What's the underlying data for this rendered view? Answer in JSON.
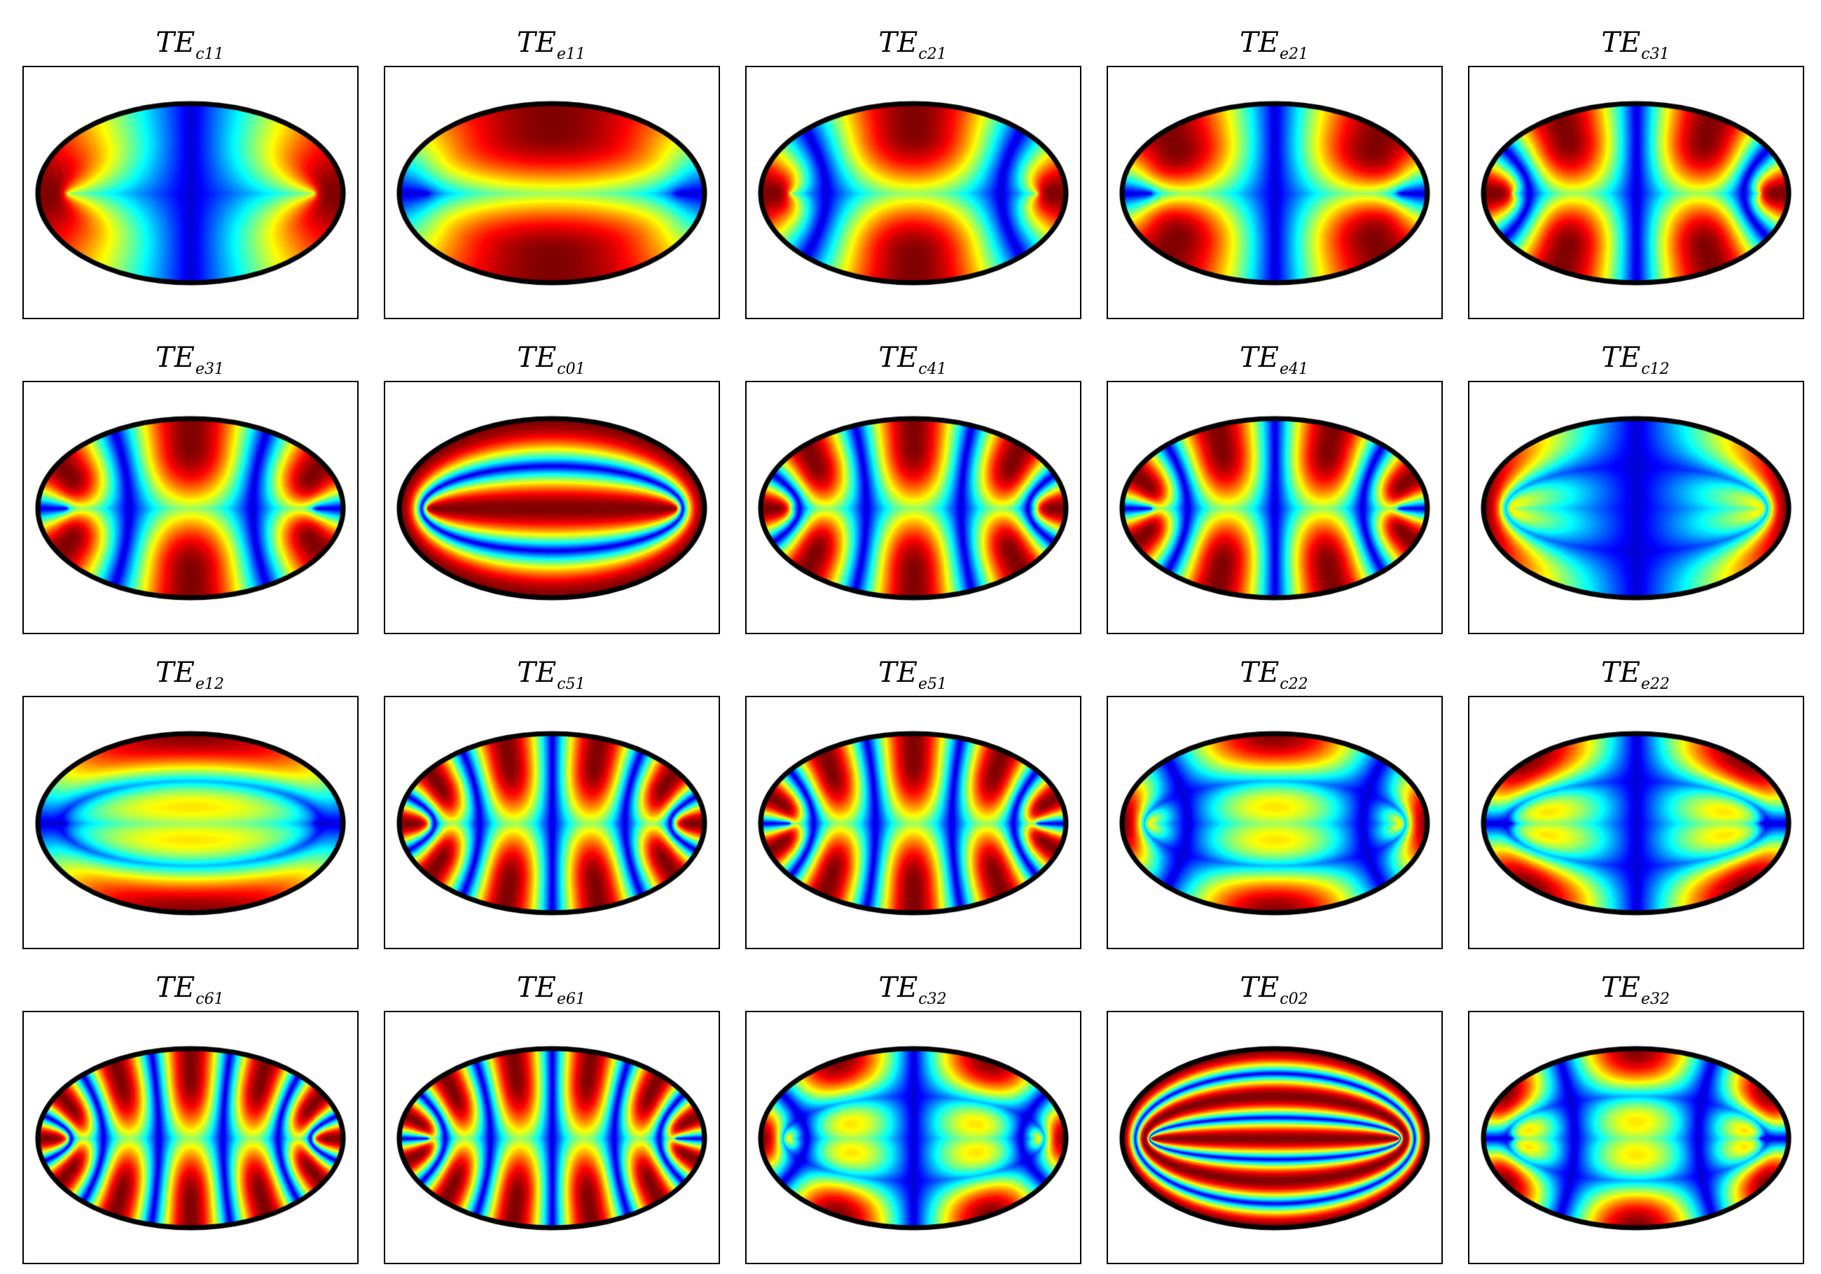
{
  "figure": {
    "title": "",
    "layout": {
      "rows": 4,
      "cols": 5
    },
    "colormap": "jet",
    "panels": [
      {
        "label_main": "TE",
        "label_sub": "c11",
        "mode": {
          "kind": "c",
          "m": 1,
          "n": 1
        }
      },
      {
        "label_main": "TE",
        "label_sub": "e11",
        "mode": {
          "kind": "e",
          "m": 1,
          "n": 1
        }
      },
      {
        "label_main": "TE",
        "label_sub": "c21",
        "mode": {
          "kind": "c",
          "m": 2,
          "n": 1
        }
      },
      {
        "label_main": "TE",
        "label_sub": "e21",
        "mode": {
          "kind": "e",
          "m": 2,
          "n": 1
        }
      },
      {
        "label_main": "TE",
        "label_sub": "c31",
        "mode": {
          "kind": "c",
          "m": 3,
          "n": 1
        }
      },
      {
        "label_main": "TE",
        "label_sub": "e31",
        "mode": {
          "kind": "e",
          "m": 3,
          "n": 1
        }
      },
      {
        "label_main": "TE",
        "label_sub": "c01",
        "mode": {
          "kind": "c",
          "m": 0,
          "n": 1
        }
      },
      {
        "label_main": "TE",
        "label_sub": "c41",
        "mode": {
          "kind": "c",
          "m": 4,
          "n": 1
        }
      },
      {
        "label_main": "TE",
        "label_sub": "e41",
        "mode": {
          "kind": "e",
          "m": 4,
          "n": 1
        }
      },
      {
        "label_main": "TE",
        "label_sub": "c12",
        "mode": {
          "kind": "c",
          "m": 1,
          "n": 2
        }
      },
      {
        "label_main": "TE",
        "label_sub": "e12",
        "mode": {
          "kind": "e",
          "m": 1,
          "n": 2
        }
      },
      {
        "label_main": "TE",
        "label_sub": "c51",
        "mode": {
          "kind": "c",
          "m": 5,
          "n": 1
        }
      },
      {
        "label_main": "TE",
        "label_sub": "e51",
        "mode": {
          "kind": "e",
          "m": 5,
          "n": 1
        }
      },
      {
        "label_main": "TE",
        "label_sub": "c22",
        "mode": {
          "kind": "c",
          "m": 2,
          "n": 2
        }
      },
      {
        "label_main": "TE",
        "label_sub": "e22",
        "mode": {
          "kind": "e",
          "m": 2,
          "n": 2
        }
      },
      {
        "label_main": "TE",
        "label_sub": "c61",
        "mode": {
          "kind": "c",
          "m": 6,
          "n": 1
        }
      },
      {
        "label_main": "TE",
        "label_sub": "e61",
        "mode": {
          "kind": "e",
          "m": 6,
          "n": 1
        }
      },
      {
        "label_main": "TE",
        "label_sub": "c32",
        "mode": {
          "kind": "c",
          "m": 3,
          "n": 2
        }
      },
      {
        "label_main": "TE",
        "label_sub": "c02",
        "mode": {
          "kind": "c",
          "m": 0,
          "n": 2
        }
      },
      {
        "label_main": "TE",
        "label_sub": "e32",
        "mode": {
          "kind": "e",
          "m": 3,
          "n": 2
        }
      }
    ]
  }
}
